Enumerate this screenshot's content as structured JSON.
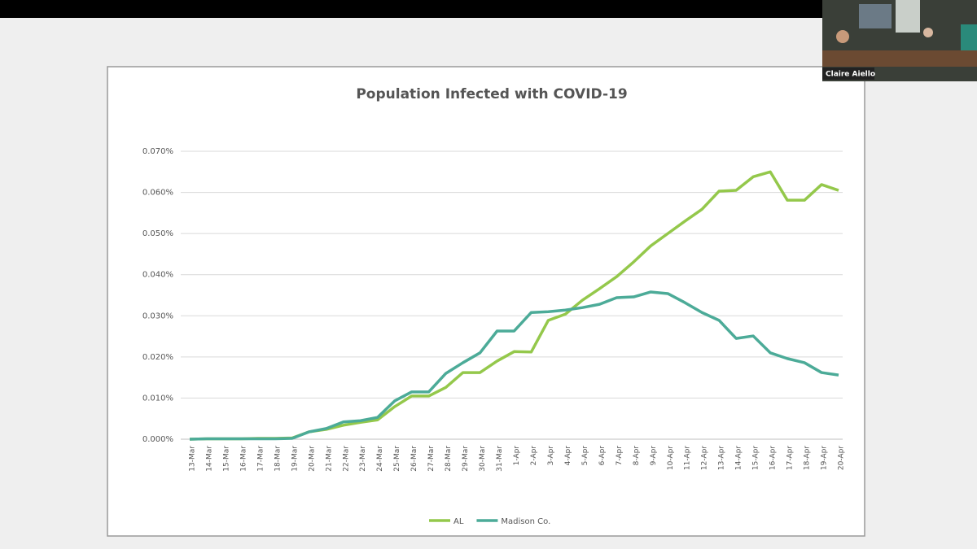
{
  "participant": {
    "name": "Claire Aiello"
  },
  "chart_data": {
    "type": "line",
    "title": "Population Infected with COVID-19",
    "categories": [
      "13-Mar",
      "14-Mar",
      "15-Mar",
      "16-Mar",
      "17-Mar",
      "18-Mar",
      "19-Mar",
      "20-Mar",
      "21-Mar",
      "22-Mar",
      "23-Mar",
      "24-Mar",
      "25-Mar",
      "26-Mar",
      "27-Mar",
      "28-Mar",
      "29-Mar",
      "30-Mar",
      "31-Mar",
      "1-Apr",
      "2-Apr",
      "3-Apr",
      "4-Apr",
      "5-Apr",
      "6-Apr",
      "7-Apr",
      "8-Apr",
      "9-Apr",
      "10-Apr",
      "11-Apr",
      "12-Apr",
      "13-Apr",
      "14-Apr",
      "15-Apr",
      "16-Apr",
      "17-Apr",
      "18-Apr",
      "19-Apr",
      "20-Apr"
    ],
    "series": [
      {
        "name": "AL",
        "color": "#94c84b",
        "values": [
          0,
          0.0001,
          0.0001,
          0.0001,
          0.0002,
          0.0002,
          0.0003,
          0.0018,
          0.0024,
          0.0034,
          0.0041,
          0.0047,
          0.0079,
          0.0105,
          0.0105,
          0.0126,
          0.0162,
          0.0162,
          0.019,
          0.0213,
          0.0212,
          0.0289,
          0.0304,
          0.0338,
          0.0366,
          0.0395,
          0.0431,
          0.047,
          0.05,
          0.053,
          0.0559,
          0.0603,
          0.0605,
          0.0638,
          0.065,
          0.0581,
          0.0581,
          0.0619,
          0.0605
        ]
      },
      {
        "name": "Madison Co.",
        "color": "#4cab98",
        "values": [
          0,
          0.0001,
          0.0001,
          0.0001,
          0.0001,
          0.0001,
          0.0002,
          0.0018,
          0.0026,
          0.0042,
          0.0045,
          0.0053,
          0.0093,
          0.0115,
          0.0115,
          0.016,
          0.0186,
          0.021,
          0.0263,
          0.0263,
          0.0308,
          0.031,
          0.0314,
          0.032,
          0.0328,
          0.0344,
          0.0346,
          0.0358,
          0.0354,
          0.0332,
          0.0308,
          0.0289,
          0.0245,
          0.0251,
          0.021,
          0.0196,
          0.0186,
          0.0162,
          0.0156
        ]
      }
    ],
    "ylim": [
      0,
      0.07
    ],
    "yticks": [
      {
        "value": 0,
        "label": "0.000%"
      },
      {
        "value": 0.01,
        "label": "0.010%"
      },
      {
        "value": 0.02,
        "label": "0.020%"
      },
      {
        "value": 0.03,
        "label": "0.030%"
      },
      {
        "value": 0.04,
        "label": "0.040%"
      },
      {
        "value": 0.05,
        "label": "0.050%"
      },
      {
        "value": 0.06,
        "label": "0.060%"
      },
      {
        "value": 0.07,
        "label": "0.070%"
      }
    ],
    "grid": true,
    "legend": "bottom"
  }
}
